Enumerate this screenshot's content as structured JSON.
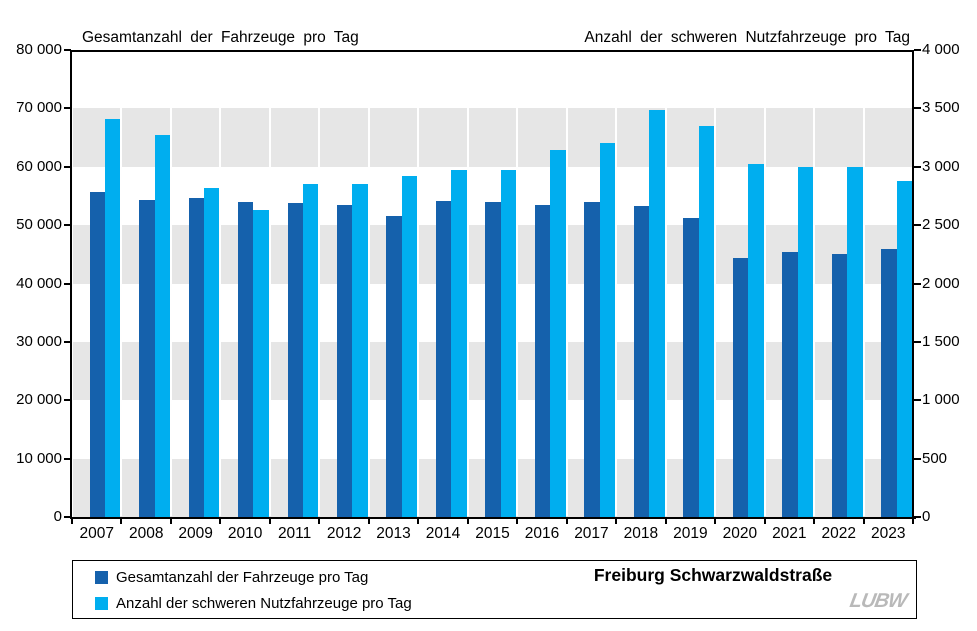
{
  "chart_data": {
    "type": "bar",
    "categories": [
      "2007",
      "2008",
      "2009",
      "2010",
      "2011",
      "2012",
      "2013",
      "2014",
      "2015",
      "2016",
      "2017",
      "2018",
      "2019",
      "2020",
      "2021",
      "2022",
      "2023"
    ],
    "series": [
      {
        "name": "Gesamtanzahl der Fahrzeuge pro Tag",
        "axis": "left",
        "color": "#1561AC",
        "values": [
          55700,
          54300,
          54700,
          53900,
          53800,
          53400,
          51500,
          54100,
          53900,
          53500,
          53900,
          53300,
          51300,
          44300,
          45400,
          45000,
          45900
        ]
      },
      {
        "name": "Anzahl der schweren Nutzfahrzeuge pro Tag",
        "axis": "right",
        "color": "#00AEEF",
        "values": [
          3410,
          3270,
          2820,
          2630,
          2850,
          2850,
          2920,
          2970,
          2970,
          3140,
          3200,
          3490,
          3350,
          3020,
          3000,
          3000,
          2880
        ]
      }
    ],
    "left_axis": {
      "title": "Gesamtanzahl der Fahrzeuge pro Tag",
      "min": 0,
      "max": 80000,
      "step": 10000,
      "tick_labels": [
        "0",
        "10 000",
        "20 000",
        "30 000",
        "40 000",
        "50 000",
        "60 000",
        "70 000",
        "80 000"
      ]
    },
    "right_axis": {
      "title": "Anzahl der schweren Nutzfahrzeuge pro Tag",
      "min": 0,
      "max": 4000,
      "step": 500,
      "tick_labels": [
        "0",
        "500",
        "1 000",
        "1 500",
        "2 000",
        "2 500",
        "3 000",
        "3 500",
        "4 000"
      ]
    },
    "plot_style": {
      "band_color": "#E6E6E6",
      "band_ranges_left": [
        [
          0,
          10000
        ],
        [
          20000,
          30000
        ],
        [
          40000,
          50000
        ],
        [
          60000,
          70000
        ]
      ]
    },
    "legend_position": "bottom",
    "station": "Freiburg Schwarzwaldstraße",
    "logo": "LUBW"
  }
}
